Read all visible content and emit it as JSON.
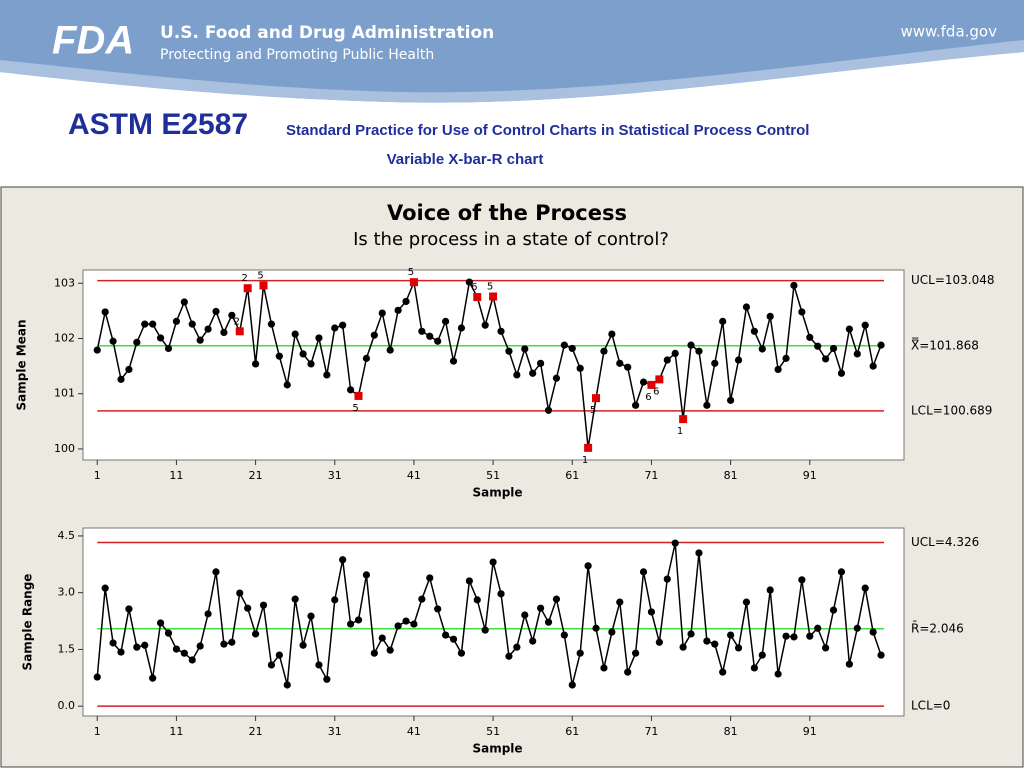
{
  "header": {
    "logo": "FDA",
    "agency": "U.S. Food and Drug Administration",
    "tagline": "Protecting and Promoting Public Health",
    "url": "www.fda.gov"
  },
  "slide": {
    "title": "ASTM E2587",
    "subtitle": "Standard Practice for Use of Control Charts in Statistical Process Control",
    "caption": "Variable X-bar-R chart"
  },
  "chart_data": [
    {
      "type": "line",
      "title": "Voice of the Process",
      "subtitle": "Is the process in a state of control?",
      "x_label": "Sample",
      "y_label": "Sample Mean",
      "color": "#000000",
      "flag_color": "#e00000",
      "x": [
        1,
        2,
        3,
        4,
        5,
        6,
        7,
        8,
        9,
        10,
        11,
        12,
        13,
        14,
        15,
        16,
        17,
        18,
        19,
        20,
        21,
        22,
        23,
        24,
        25,
        26,
        27,
        28,
        29,
        30,
        31,
        32,
        33,
        34,
        35,
        36,
        37,
        38,
        39,
        40,
        41,
        42,
        43,
        44,
        45,
        46,
        47,
        48,
        49,
        50,
        51,
        52,
        53,
        54,
        55,
        56,
        57,
        58,
        59,
        60,
        61,
        62,
        63,
        64,
        65,
        66,
        67,
        68,
        69,
        70,
        71,
        72,
        73,
        74,
        75,
        76,
        77,
        78,
        79,
        80,
        81,
        82,
        83,
        84,
        85,
        86,
        87,
        88,
        89,
        90,
        91,
        92,
        93,
        94,
        95,
        96,
        97,
        98,
        99,
        100
      ],
      "values": [
        101.79,
        102.48,
        101.95,
        101.26,
        101.44,
        101.93,
        102.26,
        102.26,
        102.01,
        101.82,
        102.31,
        102.66,
        102.26,
        101.97,
        102.17,
        102.49,
        102.11,
        102.42,
        102.13,
        102.91,
        101.54,
        102.96,
        102.26,
        101.68,
        101.16,
        102.08,
        101.72,
        101.54,
        102.01,
        101.34,
        102.19,
        102.24,
        101.07,
        100.96,
        101.64,
        102.06,
        102.46,
        101.79,
        102.51,
        102.67,
        103.02,
        102.13,
        102.04,
        101.95,
        102.31,
        101.59,
        102.19,
        103.02,
        102.75,
        102.24,
        102.76,
        102.13,
        101.77,
        101.34,
        101.81,
        101.37,
        101.55,
        100.7,
        101.28,
        101.88,
        101.82,
        101.46,
        100.02,
        100.92,
        101.77,
        102.08,
        101.55,
        101.48,
        100.79,
        101.21,
        101.16,
        101.26,
        101.61,
        101.73,
        100.54,
        101.88,
        101.77,
        100.79,
        101.55,
        102.31,
        100.88,
        101.61,
        102.57,
        102.13,
        101.81,
        102.4,
        101.44,
        101.64,
        102.96,
        102.48,
        102.02,
        101.86,
        101.63,
        101.82,
        101.37,
        102.17,
        101.72,
        102.24,
        101.5,
        101.88
      ],
      "test_labels": [
        null,
        null,
        null,
        null,
        null,
        null,
        null,
        null,
        null,
        null,
        null,
        null,
        null,
        null,
        null,
        null,
        null,
        null,
        "2",
        "2",
        null,
        "5",
        null,
        null,
        null,
        null,
        null,
        null,
        null,
        null,
        null,
        null,
        null,
        "5",
        null,
        null,
        null,
        null,
        null,
        null,
        "5",
        null,
        null,
        null,
        null,
        null,
        null,
        null,
        "6",
        null,
        "5",
        null,
        null,
        null,
        null,
        null,
        null,
        null,
        null,
        null,
        null,
        null,
        "1",
        "5",
        null,
        null,
        null,
        null,
        null,
        null,
        "6",
        "6",
        null,
        null,
        "1",
        null,
        null,
        null,
        null,
        null,
        null,
        null,
        null,
        null,
        null,
        null,
        null,
        null,
        null,
        null,
        null,
        null,
        null,
        null,
        null,
        null,
        null,
        null,
        null,
        null
      ],
      "limits": [
        {
          "label": "UCL=103.048",
          "value": 103.048,
          "color": "#d02020"
        },
        {
          "label": "X̿=101.868",
          "value": 101.868,
          "color": "#3ee03e"
        },
        {
          "label": "LCL=100.689",
          "value": 100.689,
          "color": "#d02020"
        }
      ],
      "xlim": [
        -0.8,
        102.9
      ],
      "xticks": [
        1,
        11,
        21,
        31,
        41,
        51,
        61,
        71,
        81,
        91
      ],
      "ylim": [
        99.8,
        103.24
      ],
      "yticks": [
        100,
        101,
        102,
        103
      ]
    },
    {
      "type": "line",
      "x_label": "Sample",
      "y_label": "Sample Range",
      "color": "#000000",
      "flag_color": "#e00000",
      "x": [
        1,
        2,
        3,
        4,
        5,
        6,
        7,
        8,
        9,
        10,
        11,
        12,
        13,
        14,
        15,
        16,
        17,
        18,
        19,
        20,
        21,
        22,
        23,
        24,
        25,
        26,
        27,
        28,
        29,
        30,
        31,
        32,
        33,
        34,
        35,
        36,
        37,
        38,
        39,
        40,
        41,
        42,
        43,
        44,
        45,
        46,
        47,
        48,
        49,
        50,
        51,
        52,
        53,
        54,
        55,
        56,
        57,
        58,
        59,
        60,
        61,
        62,
        63,
        64,
        65,
        66,
        67,
        68,
        69,
        70,
        71,
        72,
        73,
        74,
        75,
        76,
        77,
        78,
        79,
        80,
        81,
        82,
        83,
        84,
        85,
        86,
        87,
        88,
        89,
        90,
        91,
        92,
        93,
        94,
        95,
        96,
        97,
        98,
        99,
        100
      ],
      "values": [
        0.77,
        3.12,
        1.67,
        1.43,
        2.57,
        1.56,
        1.61,
        0.74,
        2.2,
        1.93,
        1.51,
        1.4,
        1.22,
        1.59,
        2.44,
        3.55,
        1.64,
        1.69,
        2.99,
        2.59,
        1.91,
        2.67,
        1.09,
        1.35,
        0.56,
        2.83,
        1.61,
        2.38,
        1.09,
        0.71,
        2.81,
        3.87,
        2.17,
        2.28,
        3.47,
        1.4,
        1.8,
        1.48,
        2.12,
        2.25,
        2.17,
        2.83,
        3.39,
        2.57,
        1.88,
        1.77,
        1.4,
        3.31,
        2.81,
        2.01,
        3.81,
        2.97,
        1.32,
        1.56,
        2.41,
        1.72,
        2.59,
        2.22,
        2.83,
        1.88,
        0.56,
        1.4,
        3.71,
        2.06,
        1.01,
        1.96,
        2.75,
        0.9,
        1.4,
        3.55,
        2.49,
        1.69,
        3.36,
        4.31,
        1.56,
        1.91,
        4.05,
        1.72,
        1.64,
        0.9,
        1.88,
        1.54,
        2.75,
        1.01,
        1.35,
        3.07,
        0.85,
        1.85,
        1.83,
        3.34,
        1.85,
        2.06,
        1.54,
        2.54,
        3.55,
        1.11,
        2.06,
        3.12,
        1.96,
        1.35
      ],
      "limits": [
        {
          "label": "UCL=4.326",
          "value": 4.326,
          "color": "#d02020"
        },
        {
          "label": "R̄=2.046",
          "value": 2.046,
          "color": "#3ee03e"
        },
        {
          "label": "LCL=0",
          "value": 0,
          "color": "#d02020"
        }
      ],
      "xlim": [
        -0.8,
        102.9
      ],
      "xticks": [
        1,
        11,
        21,
        31,
        41,
        51,
        61,
        71,
        81,
        91
      ],
      "ylim": [
        -0.26,
        4.71
      ],
      "yticks": [
        {
          "value": 0,
          "label": "0.0"
        },
        {
          "value": 1.5,
          "label": "1.5"
        },
        {
          "value": 3,
          "label": "3.0"
        },
        {
          "value": 4.5,
          "label": "4.5"
        }
      ]
    }
  ]
}
